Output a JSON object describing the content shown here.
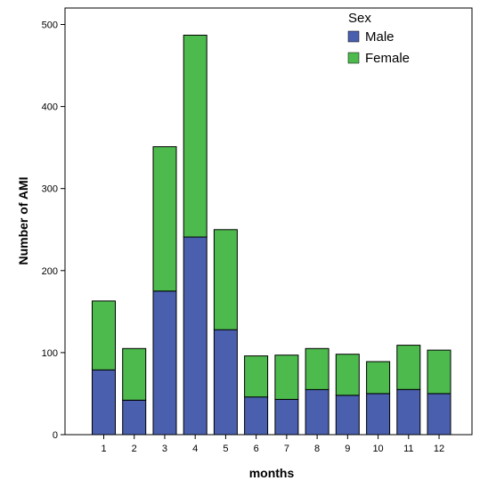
{
  "chart_data": {
    "type": "bar",
    "stacked": true,
    "categories": [
      "1",
      "2",
      "3",
      "4",
      "5",
      "6",
      "7",
      "8",
      "9",
      "10",
      "11",
      "12"
    ],
    "series": [
      {
        "name": "Male",
        "color": "#4a5fae",
        "values": [
          79,
          42,
          175,
          241,
          128,
          46,
          43,
          55,
          48,
          50,
          55,
          50
        ]
      },
      {
        "name": "Female",
        "color": "#4dba4d",
        "values": [
          84,
          63,
          176,
          246,
          122,
          50,
          54,
          50,
          50,
          39,
          54,
          53
        ]
      }
    ],
    "xlabel": "months",
    "ylabel": "Number of AMI",
    "ylim": [
      0,
      520
    ],
    "yticks": [
      "0",
      "100",
      "200",
      "300",
      "400",
      "500"
    ],
    "legend": {
      "title": "Sex",
      "position": "top-right"
    },
    "grid": false
  }
}
